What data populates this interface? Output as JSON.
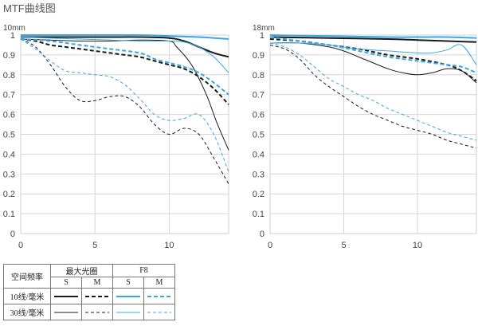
{
  "page": {
    "title": "MTF曲线图"
  },
  "colors": {
    "black": "#1a1a1a",
    "blue": "#38a8e0"
  },
  "chart_data": [
    {
      "type": "line",
      "title": "10mm",
      "xlim": [
        0,
        14
      ],
      "ylim": [
        0,
        1
      ],
      "xticks": [
        "0",
        "5",
        "10"
      ],
      "yticks": [
        "0",
        "0.1",
        "0.2",
        "0.3",
        "0.4",
        "0.5",
        "0.6",
        "0.7",
        "0.8",
        "0.9",
        "1"
      ],
      "grid": true,
      "series": [
        {
          "legend_key": "10-S-max",
          "values": [
            [
              0,
              0.99
            ],
            [
              2,
              0.99
            ],
            [
              4,
              0.99
            ],
            [
              6,
              0.99
            ],
            [
              8,
              0.99
            ],
            [
              10,
              0.985
            ],
            [
              11,
              0.97
            ],
            [
              12,
              0.94
            ],
            [
              13,
              0.91
            ],
            [
              14,
              0.89
            ]
          ]
        },
        {
          "legend_key": "10-M-max",
          "values": [
            [
              0,
              0.98
            ],
            [
              1,
              0.97
            ],
            [
              2,
              0.95
            ],
            [
              3,
              0.94
            ],
            [
              4,
              0.93
            ],
            [
              5,
              0.92
            ],
            [
              6,
              0.91
            ],
            [
              7,
              0.9
            ],
            [
              8,
              0.89
            ],
            [
              9,
              0.87
            ],
            [
              10,
              0.85
            ],
            [
              11,
              0.83
            ],
            [
              12,
              0.79
            ],
            [
              13,
              0.73
            ],
            [
              14,
              0.65
            ]
          ]
        },
        {
          "legend_key": "30-S-max",
          "values": [
            [
              0,
              0.98
            ],
            [
              2,
              0.975
            ],
            [
              4,
              0.97
            ],
            [
              6,
              0.97
            ],
            [
              8,
              0.975
            ],
            [
              10,
              0.97
            ],
            [
              10.5,
              0.94
            ],
            [
              11.5,
              0.85
            ],
            [
              12.5,
              0.7
            ],
            [
              13.2,
              0.56
            ],
            [
              14,
              0.42
            ]
          ]
        },
        {
          "legend_key": "30-M-max",
          "values": [
            [
              0,
              0.98
            ],
            [
              1,
              0.94
            ],
            [
              2,
              0.85
            ],
            [
              3,
              0.74
            ],
            [
              4,
              0.67
            ],
            [
              5,
              0.67
            ],
            [
              6,
              0.69
            ],
            [
              7,
              0.69
            ],
            [
              8,
              0.64
            ],
            [
              9,
              0.55
            ],
            [
              10,
              0.5
            ],
            [
              11,
              0.53
            ],
            [
              12,
              0.5
            ],
            [
              13,
              0.38
            ],
            [
              14,
              0.25
            ]
          ]
        },
        {
          "legend_key": "10-S-F8",
          "values": [
            [
              0,
              1.0
            ],
            [
              4,
              1.0
            ],
            [
              8,
              1.0
            ],
            [
              10,
              0.995
            ],
            [
              12,
              0.99
            ],
            [
              14,
              0.98
            ]
          ]
        },
        {
          "legend_key": "10-M-F8",
          "values": [
            [
              0,
              0.98
            ],
            [
              2,
              0.97
            ],
            [
              4,
              0.95
            ],
            [
              6,
              0.93
            ],
            [
              8,
              0.91
            ],
            [
              9,
              0.88
            ],
            [
              10,
              0.86
            ],
            [
              11,
              0.84
            ],
            [
              12,
              0.81
            ],
            [
              13,
              0.76
            ],
            [
              14,
              0.7
            ]
          ]
        },
        {
          "legend_key": "30-S-F8",
          "values": [
            [
              0,
              0.99
            ],
            [
              4,
              0.98
            ],
            [
              8,
              0.97
            ],
            [
              10,
              0.97
            ],
            [
              11,
              0.965
            ],
            [
              12,
              0.94
            ],
            [
              13,
              0.89
            ],
            [
              14,
              0.81
            ]
          ]
        },
        {
          "legend_key": "30-M-F8",
          "values": [
            [
              0,
              0.98
            ],
            [
              1,
              0.93
            ],
            [
              2,
              0.87
            ],
            [
              3,
              0.82
            ],
            [
              4,
              0.81
            ],
            [
              5,
              0.8
            ],
            [
              6,
              0.79
            ],
            [
              7,
              0.75
            ],
            [
              8,
              0.68
            ],
            [
              9,
              0.6
            ],
            [
              10,
              0.57
            ],
            [
              11,
              0.58
            ],
            [
              12,
              0.6
            ],
            [
              13,
              0.5
            ],
            [
              14,
              0.31
            ]
          ]
        }
      ]
    },
    {
      "type": "line",
      "title": "18mm",
      "xlim": [
        0,
        14
      ],
      "ylim": [
        0,
        1
      ],
      "xticks": [
        "0",
        "5",
        "10"
      ],
      "yticks": [
        "0",
        "0.1",
        "0.2",
        "0.3",
        "0.4",
        "0.5",
        "0.6",
        "0.7",
        "0.8",
        "0.9",
        "1"
      ],
      "grid": true,
      "series": [
        {
          "legend_key": "10-S-max",
          "values": [
            [
              0,
              0.99
            ],
            [
              4,
              0.985
            ],
            [
              8,
              0.98
            ],
            [
              10,
              0.975
            ],
            [
              12,
              0.97
            ],
            [
              14,
              0.965
            ]
          ]
        },
        {
          "legend_key": "10-M-max",
          "values": [
            [
              0,
              0.98
            ],
            [
              2,
              0.97
            ],
            [
              4,
              0.95
            ],
            [
              6,
              0.93
            ],
            [
              8,
              0.9
            ],
            [
              10,
              0.88
            ],
            [
              12,
              0.85
            ],
            [
              13,
              0.82
            ],
            [
              14,
              0.77
            ]
          ]
        },
        {
          "legend_key": "30-S-max",
          "values": [
            [
              0,
              0.96
            ],
            [
              2,
              0.96
            ],
            [
              4,
              0.94
            ],
            [
              5,
              0.92
            ],
            [
              6,
              0.89
            ],
            [
              7,
              0.86
            ],
            [
              8,
              0.83
            ],
            [
              9,
              0.81
            ],
            [
              10,
              0.8
            ],
            [
              11,
              0.81
            ],
            [
              12,
              0.83
            ],
            [
              13,
              0.82
            ],
            [
              14,
              0.76
            ]
          ]
        },
        {
          "legend_key": "30-M-max",
          "values": [
            [
              0,
              0.95
            ],
            [
              1,
              0.93
            ],
            [
              2,
              0.88
            ],
            [
              3,
              0.8
            ],
            [
              4,
              0.74
            ],
            [
              5,
              0.69
            ],
            [
              6,
              0.64
            ],
            [
              7,
              0.6
            ],
            [
              8,
              0.57
            ],
            [
              9,
              0.54
            ],
            [
              10,
              0.52
            ],
            [
              11,
              0.5
            ],
            [
              12,
              0.47
            ],
            [
              13,
              0.45
            ],
            [
              14,
              0.43
            ]
          ]
        },
        {
          "legend_key": "10-S-F8",
          "values": [
            [
              0,
              1.0
            ],
            [
              4,
              0.995
            ],
            [
              8,
              0.99
            ],
            [
              10,
              0.99
            ],
            [
              12,
              0.99
            ],
            [
              14,
              0.985
            ]
          ]
        },
        {
          "legend_key": "10-M-F8",
          "values": [
            [
              0,
              0.99
            ],
            [
              2,
              0.97
            ],
            [
              4,
              0.95
            ],
            [
              6,
              0.92
            ],
            [
              8,
              0.89
            ],
            [
              10,
              0.87
            ],
            [
              12,
              0.85
            ],
            [
              13,
              0.84
            ],
            [
              14,
              0.81
            ]
          ]
        },
        {
          "legend_key": "30-S-F8",
          "values": [
            [
              0,
              0.96
            ],
            [
              2,
              0.96
            ],
            [
              4,
              0.95
            ],
            [
              6,
              0.93
            ],
            [
              8,
              0.92
            ],
            [
              10,
              0.91
            ],
            [
              11,
              0.91
            ],
            [
              12,
              0.925
            ],
            [
              13,
              0.95
            ],
            [
              14,
              0.85
            ]
          ]
        },
        {
          "legend_key": "30-M-F8",
          "values": [
            [
              0,
              0.96
            ],
            [
              1,
              0.94
            ],
            [
              2,
              0.9
            ],
            [
              3,
              0.84
            ],
            [
              4,
              0.78
            ],
            [
              5,
              0.74
            ],
            [
              6,
              0.7
            ],
            [
              7,
              0.67
            ],
            [
              8,
              0.63
            ],
            [
              9,
              0.6
            ],
            [
              10,
              0.57
            ],
            [
              11,
              0.54
            ],
            [
              12,
              0.51
            ],
            [
              13,
              0.49
            ],
            [
              14,
              0.47
            ]
          ]
        }
      ]
    }
  ],
  "legend": {
    "col_freq": "空间频率",
    "col_max": "最大光圈",
    "col_f8": "F8",
    "sub_s": "S",
    "sub_m": "M",
    "row_10": "10线/毫米",
    "row_30": "30线/毫米"
  }
}
